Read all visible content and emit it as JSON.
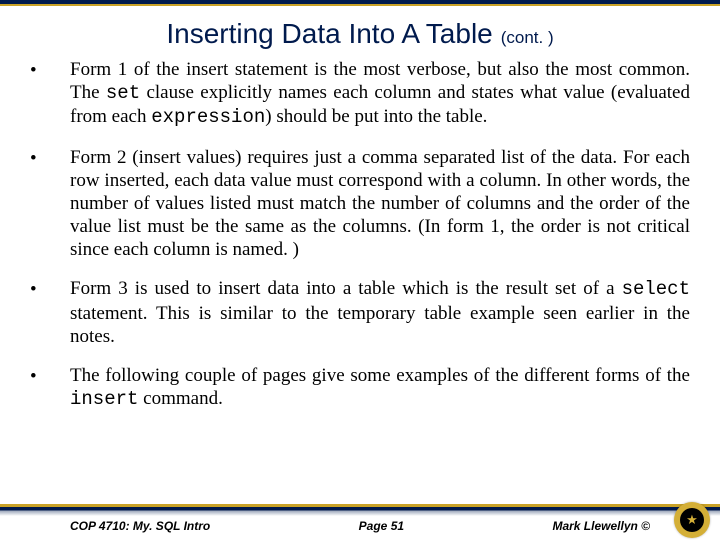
{
  "title": {
    "main": "Inserting Data Into A Table",
    "cont": "(cont. )"
  },
  "bullets": [
    {
      "pre1": "Form 1 of the insert statement is the most verbose, but also the most common.  The ",
      "code1": "set",
      "mid1": " clause explicitly names each column and states what value (evaluated from each ",
      "code2": "expression",
      "post1": ") should be put into the table."
    },
    {
      "text": "Form 2 (insert values) requires just a comma separated list of the data.  For each row inserted, each data value must correspond with a column.  In other words, the number of values listed must match the number of columns and the order of the value list must be the same as the columns.  (In form 1, the order is not critical since each column is named. )"
    },
    {
      "pre1": "Form 3 is used to insert data into a table which is the result set of a ",
      "code1": "select",
      "post1": " statement.  This is similar to the temporary table example seen earlier in the notes."
    },
    {
      "pre1": "The following couple of pages give some examples of the different forms of the ",
      "code1": "insert",
      "post1": " command."
    }
  ],
  "footer": {
    "left": "COP 4710: My. SQL Intro",
    "center": "Page 51",
    "right": "Mark Llewellyn ©"
  },
  "colors": {
    "navy": "#001a4d",
    "gold": "#c9a227",
    "text": "#000000",
    "bg": "#ffffff"
  }
}
